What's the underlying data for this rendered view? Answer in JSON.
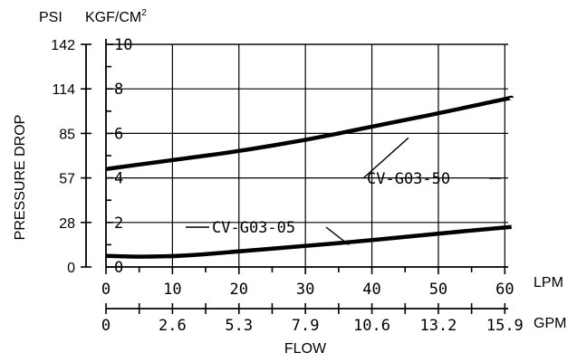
{
  "chart_data": {
    "type": "line",
    "axes": {
      "psi": {
        "label": "PSI",
        "ticks": [
          0,
          28,
          57,
          85,
          114,
          142
        ]
      },
      "kgf": {
        "label_base": "KGF/CM",
        "label_sup": "2",
        "ticks": [
          0,
          2,
          4,
          6,
          8,
          10
        ],
        "range": [
          0,
          10
        ]
      },
      "y_title": "PRESSURE DROP",
      "lpm": {
        "unit": "LPM",
        "ticks": [
          0,
          10,
          20,
          30,
          40,
          50,
          60
        ],
        "range": [
          0,
          60.5
        ]
      },
      "gpm": {
        "unit": "GPM",
        "ticks": [
          "0",
          "2.6",
          "5.3",
          "7.9",
          "10.6",
          "13.2",
          "15.9"
        ]
      },
      "x_title": "FLOW"
    },
    "series": [
      {
        "name": "CV-G03-50",
        "points": [
          [
            0,
            4.4
          ],
          [
            10,
            4.8
          ],
          [
            20,
            5.2
          ],
          [
            30,
            5.7
          ],
          [
            40,
            6.3
          ],
          [
            50,
            6.9
          ],
          [
            61,
            7.6
          ]
        ]
      },
      {
        "name": "CV-G03-05",
        "points": [
          [
            0,
            0.5
          ],
          [
            5,
            0.45
          ],
          [
            12,
            0.5
          ],
          [
            20,
            0.7
          ],
          [
            30,
            0.95
          ],
          [
            40,
            1.2
          ],
          [
            50,
            1.5
          ],
          [
            61,
            1.8
          ]
        ]
      }
    ]
  }
}
